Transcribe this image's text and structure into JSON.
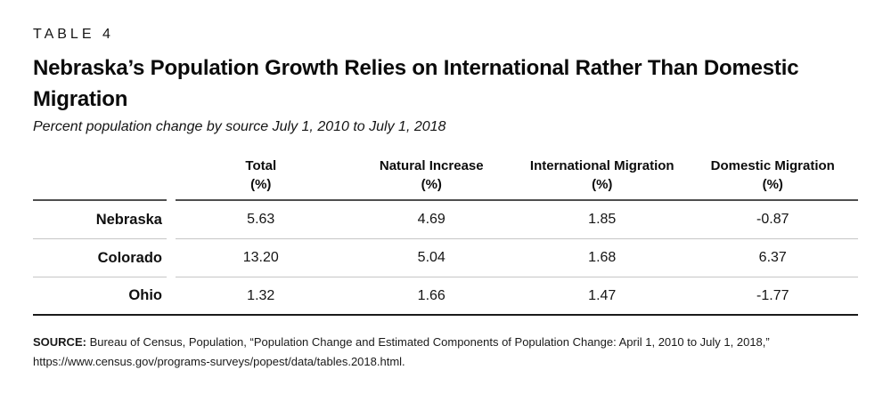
{
  "table_label": "TABLE 4",
  "title": "Nebraska’s Population Growth Relies on International Rather Than Domestic Migration",
  "subtitle": "Percent population change by source July 1, 2010 to July 1, 2018",
  "table": {
    "columns": [
      {
        "label": "Total",
        "unit": "(%)"
      },
      {
        "label": "Natural Increase",
        "unit": "(%)"
      },
      {
        "label": "International Migration",
        "unit": "(%)"
      },
      {
        "label": "Domestic Migration",
        "unit": "(%)"
      }
    ],
    "rows": [
      {
        "label": "Nebraska",
        "values": [
          "5.63",
          "4.69",
          "1.85",
          "-0.87"
        ]
      },
      {
        "label": "Colorado",
        "values": [
          "13.20",
          "5.04",
          "1.68",
          "6.37"
        ]
      },
      {
        "label": "Ohio",
        "values": [
          "1.32",
          "1.66",
          "1.47",
          "-1.77"
        ]
      }
    ]
  },
  "source": {
    "label": "SOURCE:",
    "text": " Bureau of Census, Population, “Population Change and Estimated Components of Population Change: April 1, 2010 to July 1, 2018,” https://www.census.gov/programs-surveys/popest/data/tables.2018.html."
  },
  "colors": {
    "header_rule": "#4f4f4f",
    "row_rule": "#c6c6c6",
    "bottom_rule": "#1a1a1a",
    "text": "#111111"
  },
  "chart_data": {
    "type": "table",
    "title": "Nebraska's Population Growth Relies on International Rather Than Domestic Migration",
    "subtitle": "Percent population change by source July 1, 2010 to July 1, 2018",
    "columns": [
      "",
      "Total (%)",
      "Natural Increase (%)",
      "International Migration (%)",
      "Domestic Migration (%)"
    ],
    "rows": [
      [
        "Nebraska",
        5.63,
        4.69,
        1.85,
        -0.87
      ],
      [
        "Colorado",
        13.2,
        5.04,
        1.68,
        6.37
      ],
      [
        "Ohio",
        1.32,
        1.66,
        1.47,
        -1.77
      ]
    ],
    "source": "Bureau of Census, Population, “Population Change and Estimated Components of Population Change: April 1, 2010 to July 1, 2018,” https://www.census.gov/programs-surveys/popest/data/tables.2018.html."
  }
}
